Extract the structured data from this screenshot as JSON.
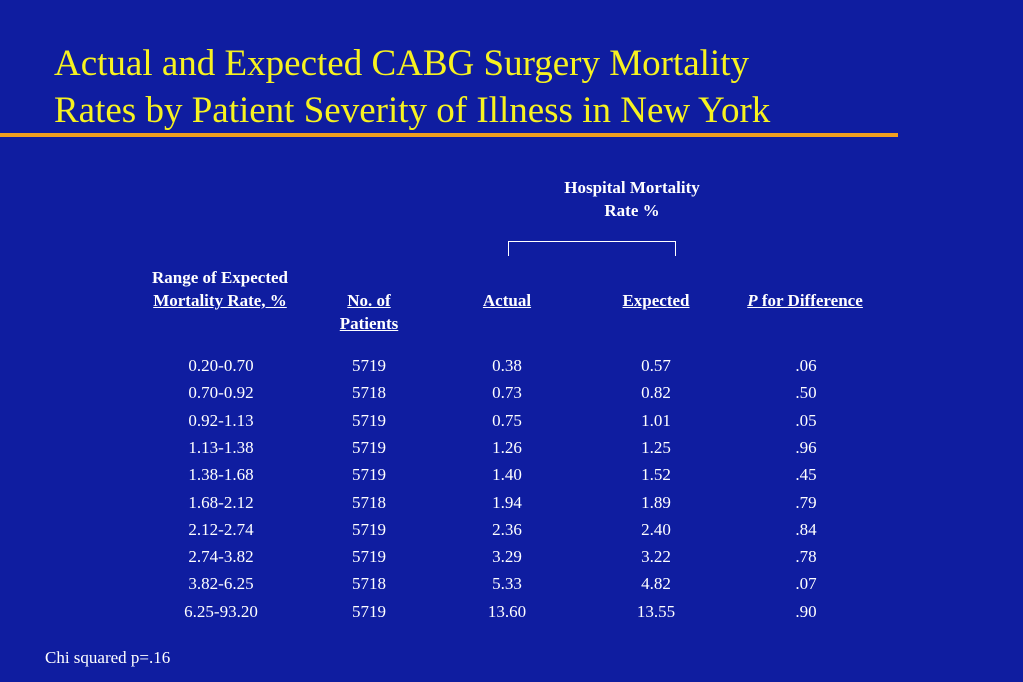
{
  "slide": {
    "title_line1": "Actual and Expected CABG Surgery Mortality",
    "title_line2": "Rates by Patient Severity of Illness in New York",
    "accent_color": "#f0a020",
    "title_color": "#f7f220",
    "background_color": "#0f1da0"
  },
  "table": {
    "group_header_line1": "Hospital Mortality",
    "group_header_line2": "Rate %",
    "headers": {
      "range_line1": "Range of Expected",
      "range_line2": "Mortality Rate, %",
      "patients_line1": "No. of",
      "patients_line2": "Patients",
      "actual": "Actual",
      "expected": "Expected",
      "p_italic": "P",
      "p_rest": " for Difference"
    },
    "rows": [
      {
        "range": "0.20-0.70",
        "patients": "5719",
        "actual": "0.38",
        "expected": "0.57",
        "p": ".06"
      },
      {
        "range": "0.70-0.92",
        "patients": "5718",
        "actual": "0.73",
        "expected": "0.82",
        "p": ".50"
      },
      {
        "range": "0.92-1.13",
        "patients": "5719",
        "actual": "0.75",
        "expected": "1.01",
        "p": ".05"
      },
      {
        "range": "1.13-1.38",
        "patients": "5719",
        "actual": "1.26",
        "expected": "1.25",
        "p": ".96"
      },
      {
        "range": "1.38-1.68",
        "patients": "5719",
        "actual": "1.40",
        "expected": "1.52",
        "p": ".45"
      },
      {
        "range": "1.68-2.12",
        "patients": "5718",
        "actual": "1.94",
        "expected": "1.89",
        "p": ".79"
      },
      {
        "range": "2.12-2.74",
        "patients": "5719",
        "actual": "2.36",
        "expected": "2.40",
        "p": ".84"
      },
      {
        "range": "2.74-3.82",
        "patients": "5719",
        "actual": "3.29",
        "expected": "3.22",
        "p": ".78"
      },
      {
        "range": "3.82-6.25",
        "patients": "5718",
        "actual": "5.33",
        "expected": "4.82",
        "p": ".07"
      },
      {
        "range": "6.25-93.20",
        "patients": "5719",
        "actual": "13.60",
        "expected": "13.55",
        "p": ".90"
      }
    ]
  },
  "footnote": "Chi squared p=.16"
}
